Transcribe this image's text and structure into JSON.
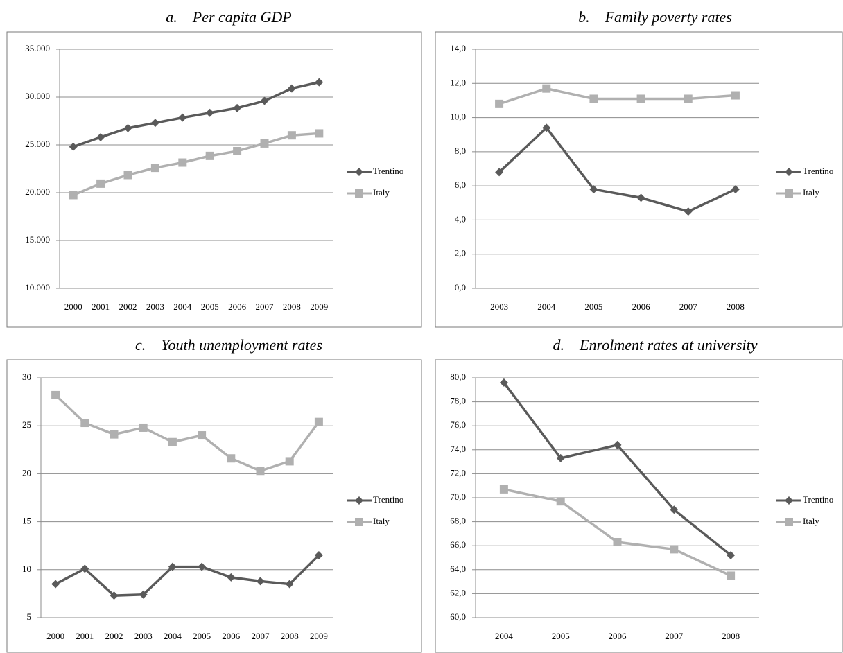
{
  "chart_data": [
    {
      "type": "line",
      "title": "a.    Per capita GDP",
      "categories": [
        "2000",
        "2001",
        "2002",
        "2003",
        "2004",
        "2005",
        "2006",
        "2007",
        "2008",
        "2009"
      ],
      "series": [
        {
          "name": "Trentino",
          "color": "#5a5a5a",
          "marker": "diamond",
          "values": [
            24800,
            25800,
            26750,
            27300,
            27850,
            28350,
            28850,
            29600,
            30900,
            31550
          ]
        },
        {
          "name": "Italy",
          "color": "#b0b0b0",
          "marker": "square",
          "values": [
            19750,
            20950,
            21850,
            22600,
            23150,
            23850,
            24350,
            25150,
            26000,
            26200
          ]
        }
      ],
      "ylim": [
        10000,
        35000
      ],
      "yticks": [
        {
          "value": 10000,
          "label": "10.000"
        },
        {
          "value": 15000,
          "label": "15.000"
        },
        {
          "value": 20000,
          "label": "20.000"
        },
        {
          "value": 25000,
          "label": "25.000"
        },
        {
          "value": 30000,
          "label": "30.000"
        },
        {
          "value": 35000,
          "label": "35.000"
        }
      ],
      "grid": true,
      "legend": "right"
    },
    {
      "type": "line",
      "title": "b.    Family poverty rates",
      "categories": [
        "2003",
        "2004",
        "2005",
        "2006",
        "2007",
        "2008"
      ],
      "series": [
        {
          "name": "Trentino",
          "color": "#5a5a5a",
          "marker": "diamond",
          "values": [
            6.8,
            9.4,
            5.8,
            5.3,
            4.5,
            5.8
          ]
        },
        {
          "name": "Italy",
          "color": "#b0b0b0",
          "marker": "square",
          "values": [
            10.8,
            11.7,
            11.1,
            11.1,
            11.1,
            11.3
          ]
        }
      ],
      "ylim": [
        0,
        14
      ],
      "yticks": [
        {
          "value": 0,
          "label": "0,0"
        },
        {
          "value": 2,
          "label": "2,0"
        },
        {
          "value": 4,
          "label": "4,0"
        },
        {
          "value": 6,
          "label": "6,0"
        },
        {
          "value": 8,
          "label": "8,0"
        },
        {
          "value": 10,
          "label": "10,0"
        },
        {
          "value": 12,
          "label": "12,0"
        },
        {
          "value": 14,
          "label": "14,0"
        }
      ],
      "grid": true,
      "legend": "right"
    },
    {
      "type": "line",
      "title": "c.    Youth unemployment rates",
      "categories": [
        "2000",
        "2001",
        "2002",
        "2003",
        "2004",
        "2005",
        "2006",
        "2007",
        "2008",
        "2009"
      ],
      "series": [
        {
          "name": "Trentino",
          "color": "#5a5a5a",
          "marker": "diamond",
          "values": [
            8.5,
            10.1,
            7.3,
            7.4,
            10.3,
            10.3,
            9.2,
            8.8,
            8.5,
            11.5
          ]
        },
        {
          "name": "Italy",
          "color": "#b0b0b0",
          "marker": "square",
          "values": [
            28.2,
            25.3,
            24.1,
            24.8,
            23.3,
            24.0,
            21.6,
            20.3,
            21.3,
            25.4
          ]
        }
      ],
      "ylim": [
        5,
        30
      ],
      "yticks": [
        5,
        10,
        15,
        20,
        25,
        30
      ],
      "grid": true,
      "legend": "right"
    },
    {
      "type": "line",
      "title": "d.    Enrolment rates at university",
      "categories": [
        "2004",
        "2005",
        "2006",
        "2007",
        "2008"
      ],
      "series": [
        {
          "name": "Trentino",
          "color": "#5a5a5a",
          "marker": "diamond",
          "values": [
            79.6,
            73.3,
            74.4,
            69.0,
            65.2
          ]
        },
        {
          "name": "Italy",
          "color": "#b0b0b0",
          "marker": "square",
          "values": [
            70.7,
            69.7,
            66.3,
            65.7,
            63.5
          ]
        }
      ],
      "ylim": [
        60,
        80
      ],
      "yticks": [
        {
          "value": 60,
          "label": "60,0"
        },
        {
          "value": 62,
          "label": "62,0"
        },
        {
          "value": 64,
          "label": "64,0"
        },
        {
          "value": 66,
          "label": "66,0"
        },
        {
          "value": 68,
          "label": "68,0"
        },
        {
          "value": 70,
          "label": "70,0"
        },
        {
          "value": 72,
          "label": "72,0"
        },
        {
          "value": 74,
          "label": "74,0"
        },
        {
          "value": 76,
          "label": "76,0"
        },
        {
          "value": 78,
          "label": "78,0"
        },
        {
          "value": 80,
          "label": "80,0"
        }
      ],
      "grid": true,
      "legend": "right"
    }
  ]
}
